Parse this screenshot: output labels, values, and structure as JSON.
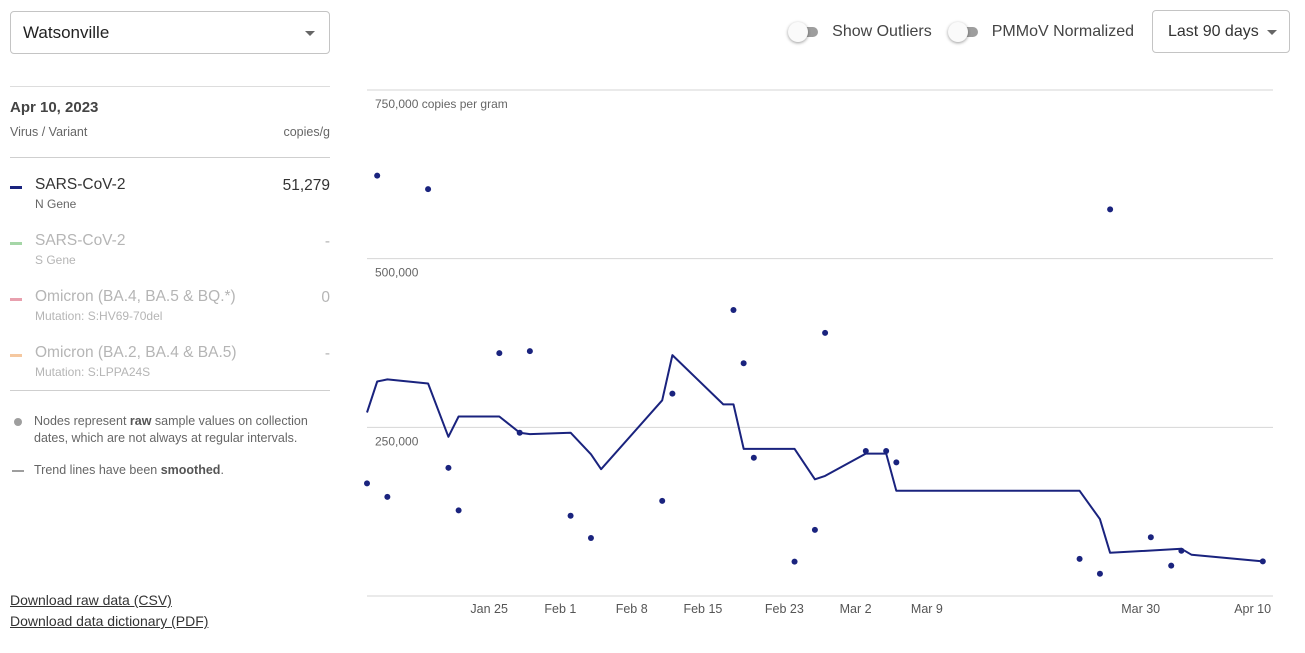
{
  "location": {
    "selected": "Watsonville"
  },
  "toolbar": {
    "show_outliers_label": "Show Outliers",
    "pmmov_label": "PMMoV Normalized",
    "range_selected": "Last 90 days"
  },
  "panel": {
    "date": "Apr 10, 2023",
    "col_left": "Virus / Variant",
    "col_right": "copies/g",
    "items": [
      {
        "name": "SARS-CoV-2",
        "sub": "N Gene",
        "value": "51,279",
        "color": "#1a237e",
        "active": true
      },
      {
        "name": "SARS-CoV-2",
        "sub": "S Gene",
        "value": "-",
        "color": "#a5d6a7",
        "active": false
      },
      {
        "name": "Omicron (BA.4, BA.5 & BQ.*)",
        "sub": "Mutation: S:HV69-70del",
        "value": "0",
        "color": "#e8a0ae",
        "active": false
      },
      {
        "name": "Omicron (BA.2, BA.4 & BA.5)",
        "sub": "Mutation: S:LPPA24S",
        "value": "-",
        "color": "#f5c8a0",
        "active": false
      }
    ],
    "notes": {
      "nodes_pre": "Nodes represent ",
      "nodes_bold": "raw",
      "nodes_post": " sample values on collection dates, which are not always at regular intervals.",
      "trend_pre": "Trend lines have been ",
      "trend_bold": "smoothed",
      "trend_post": "."
    }
  },
  "downloads": {
    "csv": "Download raw data (CSV)",
    "pdf": "Download data dictionary (PDF)"
  },
  "chart_data": {
    "type": "line",
    "series_color": "#1a237e",
    "y_unit_label": "750,000 copies per gram",
    "y_ticks": [
      {
        "value": 250000,
        "label": "250,000"
      },
      {
        "value": 500000,
        "label": "500,000"
      },
      {
        "value": 750000,
        "label": "750,000 copies per gram"
      }
    ],
    "ylim": [
      0,
      750000
    ],
    "xlim": [
      "2023-01-12",
      "2023-04-11"
    ],
    "x_ticks": [
      {
        "date": "2023-01-24",
        "label": "Jan 25"
      },
      {
        "date": "2023-01-31",
        "label": "Feb 1"
      },
      {
        "date": "2023-02-07",
        "label": "Feb 8"
      },
      {
        "date": "2023-02-14",
        "label": "Feb 15"
      },
      {
        "date": "2023-02-22",
        "label": "Feb 23"
      },
      {
        "date": "2023-03-01",
        "label": "Mar 2"
      },
      {
        "date": "2023-03-08",
        "label": "Mar 9"
      },
      {
        "date": "2023-03-29",
        "label": "Mar 30"
      },
      {
        "date": "2023-04-09",
        "label": "Apr 10"
      }
    ],
    "samples": [
      {
        "date": "2023-01-12",
        "value": 167000
      },
      {
        "date": "2023-01-13",
        "value": 623000
      },
      {
        "date": "2023-01-14",
        "value": 147000
      },
      {
        "date": "2023-01-18",
        "value": 603000
      },
      {
        "date": "2023-01-20",
        "value": 190000
      },
      {
        "date": "2023-01-21",
        "value": 127000
      },
      {
        "date": "2023-01-25",
        "value": 360000
      },
      {
        "date": "2023-01-27",
        "value": 242000
      },
      {
        "date": "2023-01-28",
        "value": 363000
      },
      {
        "date": "2023-02-01",
        "value": 119000
      },
      {
        "date": "2023-02-03",
        "value": 86000
      },
      {
        "date": "2023-02-10",
        "value": 141000
      },
      {
        "date": "2023-02-11",
        "value": 300000
      },
      {
        "date": "2023-02-17",
        "value": 424000
      },
      {
        "date": "2023-02-18",
        "value": 345000
      },
      {
        "date": "2023-02-19",
        "value": 205000
      },
      {
        "date": "2023-02-23",
        "value": 51000
      },
      {
        "date": "2023-02-25",
        "value": 98000
      },
      {
        "date": "2023-02-26",
        "value": 390000
      },
      {
        "date": "2023-03-02",
        "value": 215000
      },
      {
        "date": "2023-03-04",
        "value": 215000
      },
      {
        "date": "2023-03-05",
        "value": 198000
      },
      {
        "date": "2023-03-23",
        "value": 55000
      },
      {
        "date": "2023-03-25",
        "value": 33000
      },
      {
        "date": "2023-03-26",
        "value": 573000
      },
      {
        "date": "2023-03-30",
        "value": 87000
      },
      {
        "date": "2023-04-01",
        "value": 45000
      },
      {
        "date": "2023-04-02",
        "value": 67000
      },
      {
        "date": "2023-04-10",
        "value": 51279
      }
    ],
    "trend": [
      {
        "date": "2023-01-12",
        "value": 272000
      },
      {
        "date": "2023-01-13",
        "value": 318000
      },
      {
        "date": "2023-01-14",
        "value": 321000
      },
      {
        "date": "2023-01-18",
        "value": 315000
      },
      {
        "date": "2023-01-20",
        "value": 236000
      },
      {
        "date": "2023-01-21",
        "value": 266000
      },
      {
        "date": "2023-01-25",
        "value": 266000
      },
      {
        "date": "2023-01-27",
        "value": 242000
      },
      {
        "date": "2023-01-28",
        "value": 240000
      },
      {
        "date": "2023-02-01",
        "value": 242000
      },
      {
        "date": "2023-02-03",
        "value": 210000
      },
      {
        "date": "2023-02-04",
        "value": 188000
      },
      {
        "date": "2023-02-10",
        "value": 290000
      },
      {
        "date": "2023-02-11",
        "value": 357000
      },
      {
        "date": "2023-02-16",
        "value": 284000
      },
      {
        "date": "2023-02-17",
        "value": 284000
      },
      {
        "date": "2023-02-18",
        "value": 218000
      },
      {
        "date": "2023-02-23",
        "value": 218000
      },
      {
        "date": "2023-02-25",
        "value": 173000
      },
      {
        "date": "2023-02-26",
        "value": 178000
      },
      {
        "date": "2023-03-02",
        "value": 211000
      },
      {
        "date": "2023-03-04",
        "value": 211000
      },
      {
        "date": "2023-03-05",
        "value": 156000
      },
      {
        "date": "2023-03-23",
        "value": 156000
      },
      {
        "date": "2023-03-25",
        "value": 114000
      },
      {
        "date": "2023-03-26",
        "value": 64000
      },
      {
        "date": "2023-04-02",
        "value": 70000
      },
      {
        "date": "2023-04-03",
        "value": 61000
      },
      {
        "date": "2023-04-10",
        "value": 51279
      }
    ]
  }
}
